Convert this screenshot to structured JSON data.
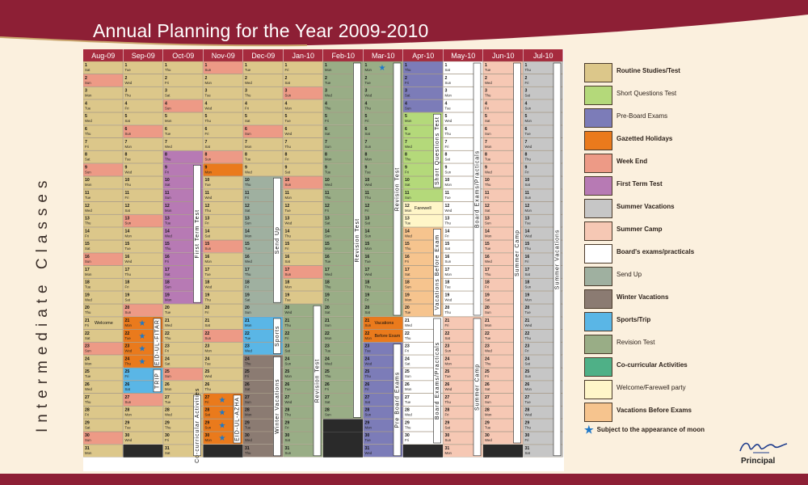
{
  "title": "Annual Planning for the Year 2009-2010",
  "side_label": "Intermediate Classes",
  "months": [
    {
      "label": "Aug-09",
      "days": 31,
      "start_dow": 6
    },
    {
      "label": "Sep-09",
      "days": 30,
      "start_dow": 2
    },
    {
      "label": "Oct-09",
      "days": 31,
      "start_dow": 4
    },
    {
      "label": "Nov-09",
      "days": 30,
      "start_dow": 0
    },
    {
      "label": "Dec-09",
      "days": 31,
      "start_dow": 2
    },
    {
      "label": "Jan-10",
      "days": 31,
      "start_dow": 5
    },
    {
      "label": "Feb-10",
      "days": 28,
      "start_dow": 1
    },
    {
      "label": "Mar-10",
      "days": 31,
      "start_dow": 1
    },
    {
      "label": "Apr-10",
      "days": 30,
      "start_dow": 4
    },
    {
      "label": "May-10",
      "days": 31,
      "start_dow": 6
    },
    {
      "label": "Jun-10",
      "days": 30,
      "start_dow": 2
    },
    {
      "label": "Jul-10",
      "days": 31,
      "start_dow": 4
    }
  ],
  "weekday_abbr": [
    "Sun",
    "Mon",
    "Tue",
    "Wed",
    "Thu",
    "Fri",
    "Sat"
  ],
  "colors": {
    "routine": "#dcc78a",
    "short": "#b4d97a",
    "preboard": "#7c7cb8",
    "gazetted": "#ea7a1c",
    "weekend": "#ed9a86",
    "firstterm": "#b77ab4",
    "summervac": "#c6c6c6",
    "summercamp": "#f6c8b4",
    "board": "#ffffff",
    "sendup": "#9fb0a0",
    "wintervac": "#8b7b72",
    "sports": "#5ab6e6",
    "revision": "#99ad86",
    "cocurricular": "#4fb087",
    "welcome": "#fff6c8",
    "vacbefore": "#f6c48e",
    "header_red": "#8d1f35",
    "month_header": "#a62b3e",
    "star": "#1e78c8"
  },
  "legend": [
    {
      "key": "routine",
      "label": "Routine Studies/Test",
      "bold": true
    },
    {
      "key": "short",
      "label": "Short Questions Test",
      "bold": false
    },
    {
      "key": "preboard",
      "label": "Pre-Board Exams",
      "bold": false
    },
    {
      "key": "gazetted",
      "label": "Gazetted Holidays",
      "bold": true
    },
    {
      "key": "weekend",
      "label": "Week End",
      "bold": true
    },
    {
      "key": "firstterm",
      "label": "First Term Test",
      "bold": true
    },
    {
      "key": "summervac",
      "label": "Summer Vacations",
      "bold": true
    },
    {
      "key": "summercamp",
      "label": "Summer Camp",
      "bold": true
    },
    {
      "key": "board",
      "label": "Board's exams/practicals",
      "bold": true
    },
    {
      "key": "sendup",
      "label": "Send Up",
      "bold": false
    },
    {
      "key": "wintervac",
      "label": "Winter Vacations",
      "bold": true
    },
    {
      "key": "sports",
      "label": "Sports/Trip",
      "bold": true
    },
    {
      "key": "revision",
      "label": "Revision Test",
      "bold": false
    },
    {
      "key": "cocurricular",
      "label": "Co-curricular Activities",
      "bold": true
    },
    {
      "key": "welcome",
      "label": "Welcome/Farewell party",
      "bold": false
    },
    {
      "key": "vacbefore",
      "label": "Vacations Before Exams",
      "bold": true
    }
  ],
  "moon_note": "Subject to the appearance of moon",
  "principal_label": "Principal",
  "events": [
    {
      "m": 1,
      "from": 21,
      "to": 24,
      "cat": "gazetted"
    },
    {
      "m": 1,
      "from": 25,
      "to": 26,
      "cat": "sports"
    },
    {
      "m": 2,
      "from": 8,
      "to": 19,
      "cat": "firstterm"
    },
    {
      "m": 3,
      "from": 9,
      "to": 9,
      "cat": "gazetted"
    },
    {
      "m": 3,
      "from": 27,
      "to": 30,
      "cat": "gazetted"
    },
    {
      "m": 4,
      "from": 10,
      "to": 20,
      "cat": "sendup"
    },
    {
      "m": 4,
      "from": 21,
      "to": 23,
      "cat": "sports"
    },
    {
      "m": 4,
      "from": 24,
      "to": 31,
      "cat": "wintervac"
    },
    {
      "m": 5,
      "from": 20,
      "to": 31,
      "cat": "revision"
    },
    {
      "m": 6,
      "from": 1,
      "to": 28,
      "cat": "revision"
    },
    {
      "m": 7,
      "from": 1,
      "to": 20,
      "cat": "revision"
    },
    {
      "m": 7,
      "from": 21,
      "to": 22,
      "cat": "gazetted"
    },
    {
      "m": 7,
      "from": 23,
      "to": 31,
      "cat": "preboard"
    },
    {
      "m": 8,
      "from": 1,
      "to": 4,
      "cat": "preboard"
    },
    {
      "m": 8,
      "from": 5,
      "to": 11,
      "cat": "short"
    },
    {
      "m": 8,
      "from": 12,
      "to": 13,
      "cat": "welcome"
    },
    {
      "m": 8,
      "from": 14,
      "to": 20,
      "cat": "vacbefore"
    },
    {
      "m": 8,
      "from": 21,
      "to": 30,
      "cat": "board"
    },
    {
      "m": 9,
      "from": 1,
      "to": 20,
      "cat": "board"
    },
    {
      "m": 9,
      "from": 21,
      "to": 31,
      "cat": "summercamp"
    },
    {
      "m": 10,
      "from": 1,
      "to": 30,
      "cat": "summercamp"
    },
    {
      "m": 11,
      "from": 1,
      "to": 31,
      "cat": "summervac"
    }
  ],
  "stars": [
    {
      "m": 1,
      "d": 21
    },
    {
      "m": 1,
      "d": 22
    },
    {
      "m": 1,
      "d": 23
    },
    {
      "m": 1,
      "d": 24
    },
    {
      "m": 3,
      "d": 27
    },
    {
      "m": 3,
      "d": 28
    },
    {
      "m": 3,
      "d": 29
    },
    {
      "m": 3,
      "d": 30
    },
    {
      "m": 7,
      "d": 1
    }
  ],
  "vertical_labels": [
    {
      "m": 2,
      "from": 9,
      "to": 19,
      "text": "First Term Test"
    },
    {
      "m": 4,
      "from": 10,
      "to": 19,
      "text": "Send Up"
    },
    {
      "m": 4,
      "from": 21,
      "to": 23,
      "text": "Sports"
    },
    {
      "m": 4,
      "from": 24,
      "to": 31,
      "text": "Winter Vacations"
    },
    {
      "m": 5,
      "from": 20,
      "to": 31,
      "text": "Revision Test"
    },
    {
      "m": 6,
      "from": 1,
      "to": 28,
      "text": "Revision Test"
    },
    {
      "m": 7,
      "from": 1,
      "to": 20,
      "text": "Revision Test"
    },
    {
      "m": 7,
      "from": 23,
      "to": 31,
      "text": "Pre Board Exams"
    },
    {
      "m": 8,
      "from": 5,
      "to": 10,
      "text": "Short Questions Test"
    },
    {
      "m": 8,
      "from": 14,
      "to": 20,
      "text": "Vacations Before Exam"
    },
    {
      "m": 8,
      "from": 21,
      "to": 30,
      "text": "Board Exams/Practicals"
    },
    {
      "m": 9,
      "from": 1,
      "to": 20,
      "text": "Board Exams/Practicals"
    },
    {
      "m": 9,
      "from": 21,
      "to": 31,
      "text": "Summer Camp"
    },
    {
      "m": 10,
      "from": 1,
      "to": 30,
      "text": "Summer Camp"
    },
    {
      "m": 11,
      "from": 1,
      "to": 31,
      "text": "Summer Vacations"
    },
    {
      "m": 1,
      "from": 21,
      "to": 24,
      "text": "EID-UL-FITAR"
    },
    {
      "m": 1,
      "from": 25,
      "to": 26,
      "text": "TRIP"
    },
    {
      "m": 3,
      "from": 27,
      "to": 30,
      "text": "EID-UL-AZHA"
    },
    {
      "m": 2,
      "from": 27,
      "to": 31,
      "text": "Co-curricular Activities"
    }
  ],
  "inline_labels": [
    {
      "m": 0,
      "d": 21,
      "text": "Welcome"
    },
    {
      "m": 8,
      "d": 12,
      "text": "Farewell"
    },
    {
      "m": 7,
      "d": 21,
      "text": "Vacations"
    },
    {
      "m": 7,
      "d": 22,
      "text": "Before Exam"
    }
  ]
}
